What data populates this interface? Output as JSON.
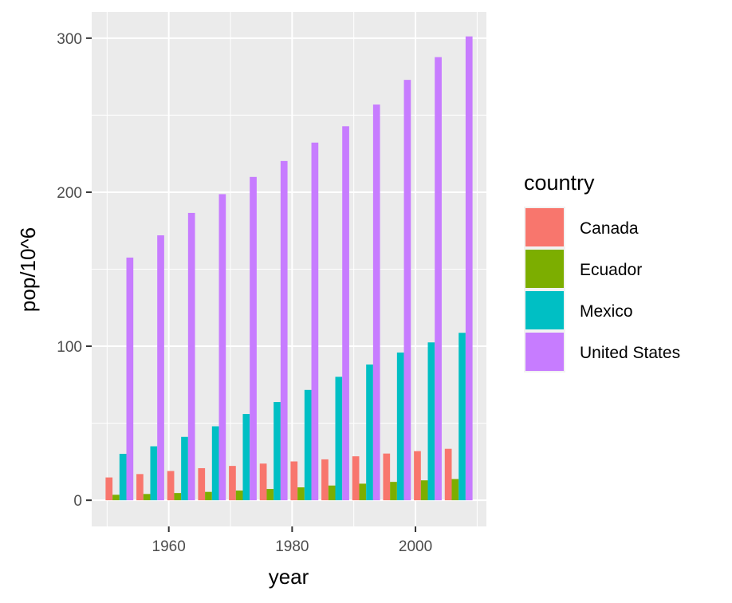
{
  "chart_data": {
    "type": "bar",
    "title": "",
    "xlabel": "year",
    "ylabel": "pop/10^6",
    "x": [
      1952,
      1957,
      1962,
      1967,
      1972,
      1977,
      1982,
      1987,
      1992,
      1997,
      2002,
      2007
    ],
    "xlim": [
      1947.5,
      2011.5
    ],
    "ylim": [
      -17,
      317
    ],
    "xticks": [
      1960,
      1980,
      2000
    ],
    "yticks": [
      0,
      100,
      200,
      300
    ],
    "grid": true,
    "legend_position": "right",
    "legend_title": "country",
    "series": [
      {
        "name": "Canada",
        "color": "#F8766D",
        "values": [
          14.8,
          17.0,
          18.99,
          20.82,
          22.28,
          23.8,
          25.2,
          26.55,
          28.52,
          30.31,
          31.9,
          33.39
        ]
      },
      {
        "name": "Ecuador",
        "color": "#7CAE00",
        "values": [
          3.55,
          4.06,
          4.68,
          5.43,
          6.3,
          7.32,
          8.37,
          9.55,
          10.75,
          11.91,
          12.92,
          13.76
        ]
      },
      {
        "name": "Mexico",
        "color": "#00BFC4",
        "values": [
          30.14,
          35.02,
          41.12,
          47.995,
          55.98,
          63.76,
          71.64,
          80.12,
          88.11,
          95.9,
          102.48,
          108.7
        ]
      },
      {
        "name": "United States",
        "color": "#C77CFF",
        "values": [
          157.55,
          171.98,
          186.54,
          198.71,
          209.9,
          220.24,
          232.19,
          242.8,
          256.89,
          272.91,
          287.68,
          301.14
        ]
      }
    ]
  }
}
